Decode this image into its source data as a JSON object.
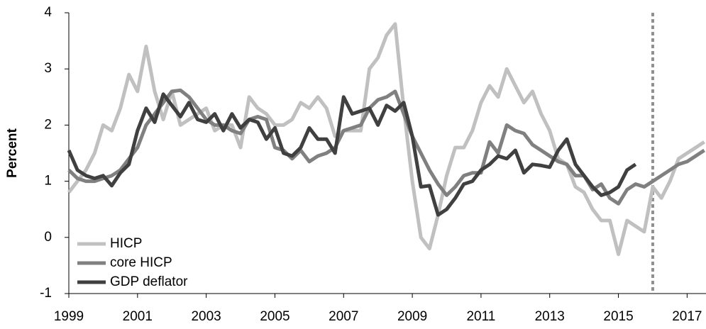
{
  "chart_data": {
    "type": "line",
    "ylabel": "Percent",
    "x": [
      1999,
      1999.25,
      1999.5,
      1999.75,
      2000,
      2000.25,
      2000.5,
      2000.75,
      2001,
      2001.25,
      2001.5,
      2001.75,
      2002,
      2002.25,
      2002.5,
      2002.75,
      2003,
      2003.25,
      2003.5,
      2003.75,
      2004,
      2004.25,
      2004.5,
      2004.75,
      2005,
      2005.25,
      2005.5,
      2005.75,
      2006,
      2006.25,
      2006.5,
      2006.75,
      2007,
      2007.25,
      2007.5,
      2007.75,
      2008,
      2008.25,
      2008.5,
      2008.75,
      2009,
      2009.25,
      2009.5,
      2009.75,
      2010,
      2010.25,
      2010.5,
      2010.75,
      2011,
      2011.25,
      2011.5,
      2011.75,
      2012,
      2012.25,
      2012.5,
      2012.75,
      2013,
      2013.25,
      2013.5,
      2013.75,
      2014,
      2014.25,
      2014.5,
      2014.75,
      2015,
      2015.25,
      2015.5,
      2015.75,
      2016,
      2016.25,
      2016.5,
      2016.75,
      2017,
      2017.25,
      2017.5
    ],
    "series": [
      {
        "name": "HICP",
        "color": "#c0c0c0",
        "values": [
          0.8,
          1.0,
          1.2,
          1.5,
          2.0,
          1.9,
          2.3,
          2.9,
          2.6,
          3.4,
          2.6,
          2.1,
          2.6,
          2.0,
          2.1,
          2.2,
          2.3,
          1.9,
          2.0,
          2.0,
          1.6,
          2.5,
          2.3,
          2.2,
          2.0,
          2.0,
          2.1,
          2.4,
          2.3,
          2.5,
          2.3,
          1.8,
          1.9,
          1.9,
          1.9,
          3.0,
          3.2,
          3.6,
          3.8,
          2.3,
          1.0,
          0.0,
          -0.2,
          0.4,
          1.1,
          1.6,
          1.6,
          1.9,
          2.4,
          2.7,
          2.5,
          3.0,
          2.7,
          2.4,
          2.6,
          2.2,
          1.9,
          1.4,
          1.3,
          0.9,
          0.8,
          0.5,
          0.3,
          0.3,
          -0.3,
          0.3,
          0.2,
          0.1,
          0.9,
          0.7,
          1.0,
          1.4,
          1.5,
          1.6,
          1.7
        ]
      },
      {
        "name": "core HICP",
        "color": "#808080",
        "values": [
          1.2,
          1.05,
          1.0,
          1.0,
          1.05,
          1.1,
          1.2,
          1.4,
          1.6,
          2.0,
          2.2,
          2.4,
          2.6,
          2.62,
          2.5,
          2.3,
          2.1,
          2.0,
          2.0,
          1.9,
          1.85,
          2.1,
          2.15,
          2.1,
          1.6,
          1.55,
          1.4,
          1.55,
          1.35,
          1.45,
          1.5,
          1.6,
          1.9,
          1.95,
          2.0,
          2.3,
          2.45,
          2.5,
          2.6,
          2.2,
          1.8,
          1.5,
          1.2,
          0.95,
          0.75,
          0.9,
          1.1,
          1.15,
          1.15,
          1.7,
          1.5,
          2.0,
          1.9,
          1.85,
          1.65,
          1.55,
          1.45,
          1.35,
          1.3,
          1.1,
          1.1,
          0.85,
          0.95,
          0.7,
          0.6,
          0.85,
          0.95,
          0.9,
          1.0,
          1.1,
          1.2,
          1.3,
          1.35,
          1.45,
          1.55
        ]
      },
      {
        "name": "GDP deflator",
        "color": "#404040",
        "values": [
          1.55,
          1.2,
          1.1,
          1.05,
          1.1,
          0.92,
          1.15,
          1.3,
          1.9,
          2.3,
          2.05,
          2.55,
          2.35,
          2.15,
          2.4,
          2.1,
          2.05,
          2.2,
          1.9,
          2.2,
          1.95,
          2.1,
          2.05,
          1.75,
          1.95,
          1.5,
          1.45,
          1.6,
          1.95,
          1.75,
          1.75,
          1.5,
          2.5,
          2.2,
          2.25,
          2.3,
          2.0,
          2.35,
          2.25,
          2.4,
          1.8,
          0.9,
          0.92,
          0.4,
          0.5,
          0.7,
          0.95,
          1.0,
          1.2,
          1.3,
          1.45,
          1.4,
          1.55,
          1.15,
          1.3,
          1.28,
          1.25,
          1.55,
          1.75,
          1.3,
          1.1,
          0.9,
          0.75,
          0.8,
          0.9,
          1.2,
          1.3,
          null,
          null,
          null,
          null,
          null,
          null,
          null,
          null
        ]
      }
    ],
    "xlim": [
      1999,
      2017.55
    ],
    "xticks": [
      1999,
      2001,
      2003,
      2005,
      2007,
      2009,
      2011,
      2013,
      2015,
      2017
    ],
    "ylim": [
      -1,
      4
    ],
    "yticks": [
      -1,
      0,
      1,
      2,
      3,
      4
    ],
    "vertical_line": {
      "value": 2016,
      "color": "#909090"
    },
    "legend": "bottom-left"
  }
}
